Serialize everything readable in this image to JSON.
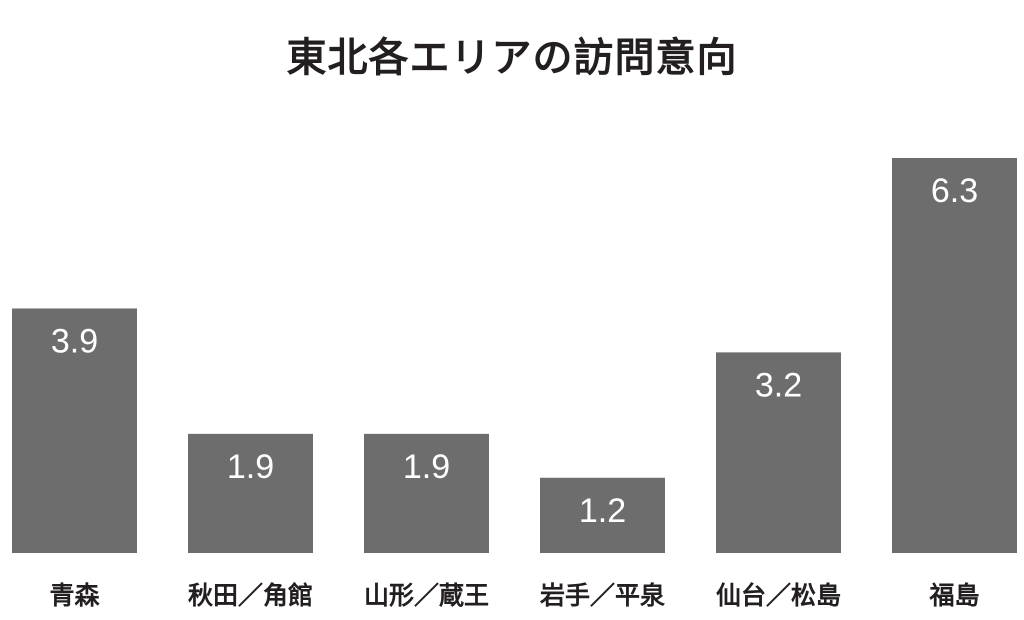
{
  "chart_data": {
    "type": "bar",
    "title": "東北各エリアの訪問意向",
    "categories": [
      "青森",
      "秋田／角館",
      "山形／蔵王",
      "岩手／平泉",
      "仙台／松島",
      "福島"
    ],
    "values": [
      3.9,
      1.9,
      1.9,
      1.2,
      3.2,
      6.3
    ],
    "data_labels": [
      "3.9",
      "1.9",
      "1.9",
      "1.2",
      "3.2",
      "6.3"
    ],
    "xlabel": "",
    "ylabel": "",
    "ylim": [
      0,
      6.3
    ],
    "grid": false,
    "legend": "none",
    "colors": {
      "bar": "#6d6d6d",
      "value_label": "#ffffff",
      "category_label": "#231f20",
      "title": "#231f20"
    }
  }
}
